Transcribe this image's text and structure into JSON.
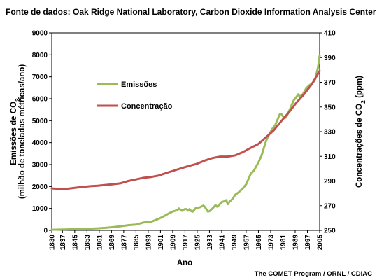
{
  "chart_data": {
    "type": "line",
    "source_title": "Fonte de dados: Oak Ridge National Laboratory, Carbon Dioxide Information Analysis Center",
    "credit": "The COMET Program / ORNL / CDIAC",
    "xlabel": "Ano",
    "ylabel_left": {
      "line1_prefix": "Emissões de CO",
      "line1_sub": "2",
      "line2": "(milhão de toneladas métricas/ano)"
    },
    "ylabel_right": {
      "prefix": "Concentrações de CO",
      "sub": "2",
      "suffix": " (ppm)"
    },
    "x_ticks": [
      "1830",
      "1837",
      "1845",
      "1853",
      "1861",
      "1869",
      "1877",
      "1885",
      "1893",
      "1901",
      "1909",
      "1917",
      "1925",
      "1933",
      "1941",
      "1949",
      "1957",
      "1965",
      "1973",
      "1981",
      "1989",
      "1997",
      "2005"
    ],
    "xlim": [
      1830,
      2005
    ],
    "y_left_ticks": [
      "0",
      "1000",
      "2000",
      "3000",
      "4000",
      "5000",
      "6000",
      "7000",
      "8000",
      "9000"
    ],
    "ylim_left": [
      0,
      9000
    ],
    "y_right_ticks": [
      "250",
      "270",
      "290",
      "310",
      "330",
      "350",
      "370",
      "390",
      "410"
    ],
    "ylim_right": [
      250,
      410
    ],
    "legend": {
      "position": "upper-left",
      "items": [
        {
          "label": "Emissões",
          "series": "emissions"
        },
        {
          "label": "Concentração",
          "series": "concentration"
        }
      ]
    },
    "colors": {
      "emissions": "#9bbb59",
      "concentration": "#c0504d"
    },
    "series": [
      {
        "id": "emissions",
        "name": "Emissões",
        "axis": "left",
        "x": [
          1830,
          1835,
          1840,
          1845,
          1850,
          1855,
          1860,
          1865,
          1870,
          1875,
          1880,
          1885,
          1890,
          1895,
          1900,
          1903,
          1906,
          1909,
          1912,
          1913,
          1915,
          1917,
          1918,
          1919,
          1920,
          1921,
          1922,
          1924,
          1927,
          1929,
          1930,
          1931,
          1932,
          1933,
          1935,
          1937,
          1938,
          1939,
          1941,
          1943,
          1944,
          1945,
          1946,
          1948,
          1950,
          1952,
          1955,
          1957,
          1960,
          1962,
          1965,
          1967,
          1970,
          1972,
          1974,
          1976,
          1979,
          1980,
          1981,
          1982,
          1983,
          1985,
          1988,
          1990,
          1991,
          1992,
          1994,
          1996,
          1998,
          2000,
          2002,
          2004,
          2005
        ],
        "y": [
          28,
          36,
          44,
          54,
          54,
          75,
          92,
          115,
          147,
          188,
          237,
          265,
          356,
          397,
          534,
          635,
          752,
          857,
          918,
          1000,
          890,
          970,
          970,
          900,
          970,
          880,
          850,
          1010,
          1060,
          1130,
          1070,
          960,
          860,
          870,
          1000,
          1150,
          1080,
          1140,
          1290,
          1330,
          1380,
          1190,
          1300,
          1430,
          1630,
          1730,
          1930,
          2100,
          2580,
          2720,
          3100,
          3400,
          4080,
          4380,
          4620,
          4800,
          5300,
          5300,
          5200,
          5130,
          5140,
          5430,
          5920,
          6100,
          6200,
          6100,
          6200,
          6450,
          6600,
          6700,
          6850,
          7450,
          7970
        ]
      },
      {
        "id": "concentration",
        "name": "Concentração",
        "axis": "right",
        "x": [
          1830,
          1835,
          1840,
          1845,
          1850,
          1855,
          1860,
          1865,
          1870,
          1875,
          1880,
          1885,
          1890,
          1895,
          1900,
          1905,
          1910,
          1915,
          1920,
          1925,
          1930,
          1935,
          1940,
          1945,
          1950,
          1955,
          1960,
          1965,
          1970,
          1975,
          1980,
          1985,
          1990,
          1995,
          2000,
          2005
        ],
        "y": [
          284,
          283.6,
          283.7,
          284.5,
          285.2,
          285.8,
          286.2,
          286.8,
          287.4,
          288.2,
          290,
          291.3,
          292.6,
          293.3,
          294.5,
          296.6,
          298.5,
          300.5,
          302.3,
          304,
          306.6,
          308.6,
          309.8,
          309.8,
          310.8,
          313.5,
          316.9,
          320,
          325.5,
          331,
          338.6,
          345.8,
          353.8,
          360.6,
          368.7,
          379.2
        ]
      }
    ]
  }
}
